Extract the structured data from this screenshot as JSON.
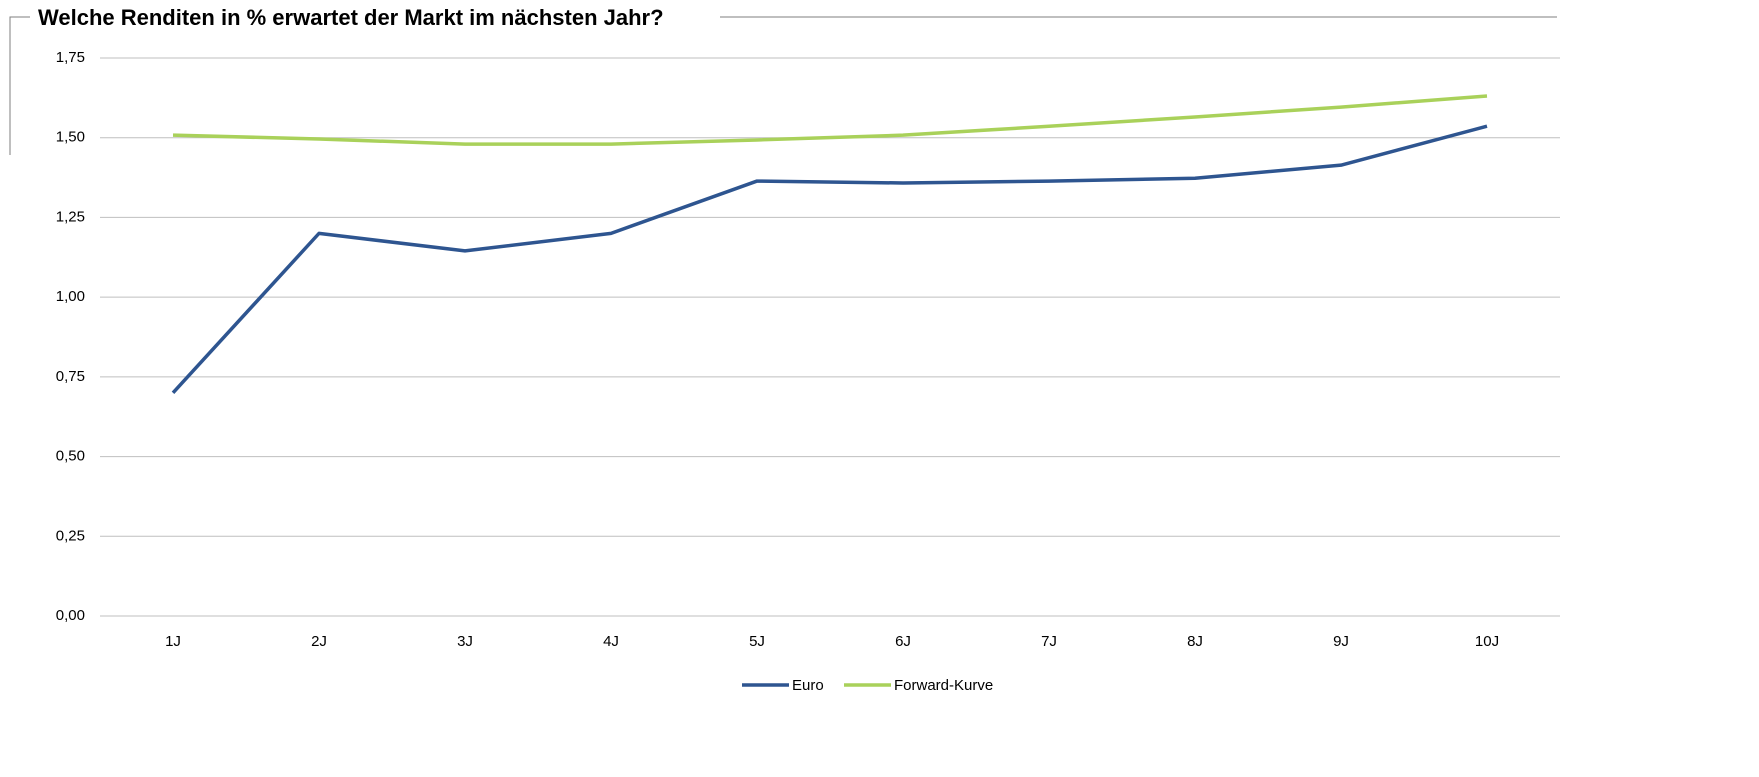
{
  "chart_data": {
    "type": "line",
    "title": "Welche Renditen in % erwartet der Markt im nächsten Jahr?",
    "categories": [
      "1J",
      "2J",
      "3J",
      "4J",
      "5J",
      "6J",
      "7J",
      "8J",
      "9J",
      "10J"
    ],
    "series": [
      {
        "name": "Euro",
        "color": "#2e5590",
        "values": [
          0.7,
          1.2,
          1.145,
          1.2,
          1.364,
          1.358,
          1.364,
          1.373,
          1.414,
          1.536
        ]
      },
      {
        "name": "Forward-Kurve",
        "color": "#a9d15a",
        "values": [
          1.508,
          1.496,
          1.48,
          1.48,
          1.493,
          1.508,
          1.536,
          1.565,
          1.596,
          1.631
        ]
      }
    ],
    "ylim": [
      0,
      1.75
    ],
    "yticks": [
      {
        "value": 0,
        "label": "0,00"
      },
      {
        "value": 0.25,
        "label": "0,25"
      },
      {
        "value": 0.5,
        "label": "0,50"
      },
      {
        "value": 0.75,
        "label": "0,75"
      },
      {
        "value": 1,
        "label": "1,00"
      },
      {
        "value": 1.25,
        "label": "1,25"
      },
      {
        "value": 1.5,
        "label": "1,50"
      },
      {
        "value": 1.75,
        "label": "1,75"
      }
    ],
    "grid": true,
    "legend": "bottom"
  }
}
